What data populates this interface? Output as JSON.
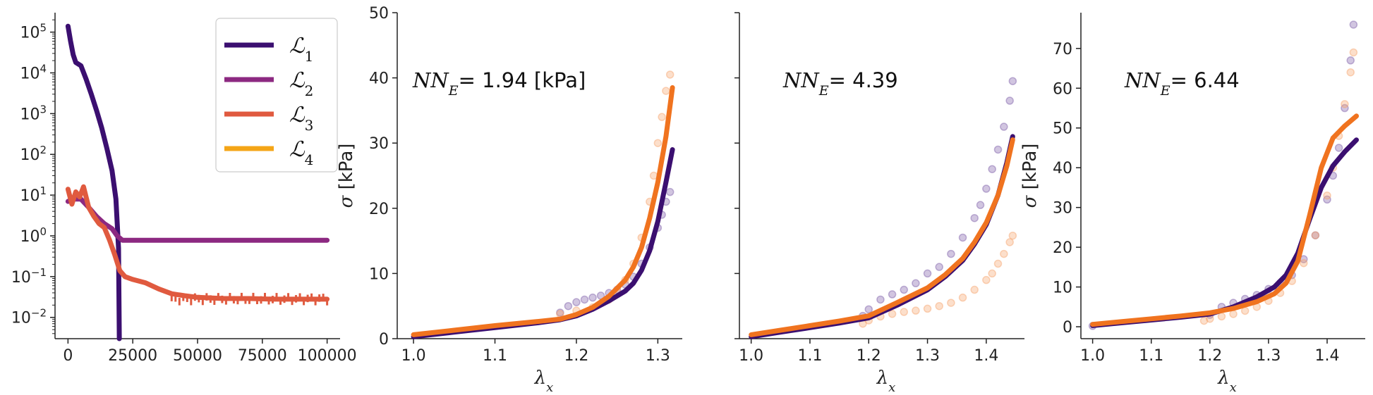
{
  "chart_data": [
    {
      "type": "line",
      "yscale": "log",
      "xlim": [
        -5000,
        105000
      ],
      "ylim": [
        0.003,
        300000
      ],
      "xticks": [
        0,
        25000,
        50000,
        75000,
        100000
      ],
      "xtick_labels": [
        "0",
        "25000",
        "50000",
        "75000",
        "100000"
      ],
      "ytick_labels": [
        "10^-2",
        "10^-1",
        "10^0",
        "10^1",
        "10^2",
        "10^3",
        "10^4",
        "10^5"
      ],
      "yticks": [
        0.01,
        0.1,
        1,
        10,
        100,
        1000,
        10000,
        100000
      ],
      "legend": {
        "placement": "top-right",
        "entries": [
          "L1",
          "L2",
          "L3",
          "L4"
        ]
      },
      "series": [
        {
          "name": "L1",
          "color": "#3b0f70",
          "x": [
            0,
            1000,
            2000,
            3000,
            5000,
            7000,
            9000,
            11000,
            13000,
            15000,
            17000,
            18500,
            19500,
            19800
          ],
          "y": [
            140000,
            60000,
            28000,
            18000,
            15000,
            7000,
            3000,
            1200,
            450,
            140,
            40,
            8,
            0.5,
            0.003
          ]
        },
        {
          "name": "L2",
          "color": "#8c2981",
          "x": [
            0,
            2000,
            5000,
            8000,
            11000,
            14000,
            17000,
            19000,
            21000,
            25000,
            50000,
            75000,
            100000
          ],
          "y": [
            7,
            8,
            8,
            5,
            3,
            2,
            1.5,
            1.0,
            0.78,
            0.78,
            0.78,
            0.78,
            0.78
          ]
        },
        {
          "name": "L3",
          "color": "#e05a3f",
          "x": [
            0,
            1500,
            3000,
            4500,
            6000,
            8000,
            10000,
            12000,
            14000,
            16000,
            18000,
            20000,
            22000,
            25000,
            30000,
            35000,
            40000,
            45000,
            50000,
            60000,
            70000,
            80000,
            90000,
            100000
          ],
          "y": [
            14,
            6,
            12,
            9,
            16,
            5,
            3,
            2,
            1.6,
            0.8,
            0.35,
            0.14,
            0.1,
            0.085,
            0.07,
            0.05,
            0.038,
            0.034,
            0.031,
            0.029,
            0.029,
            0.028,
            0.028,
            0.028
          ]
        },
        {
          "name": "L4",
          "color": "#f4a517",
          "x": [],
          "y": []
        }
      ]
    },
    {
      "type": "line",
      "xlabel": "λx",
      "ylabel": "σ [kPa]",
      "xlim": [
        0.98,
        1.33
      ],
      "ylim": [
        0,
        50
      ],
      "xticks": [
        1.0,
        1.1,
        1.2,
        1.3
      ],
      "yticks": [
        0,
        10,
        20,
        30,
        40,
        50
      ],
      "annotation": {
        "prefix": "NN",
        "subscript": "E",
        "text": "= 1.94 [kPa]"
      },
      "series": [
        {
          "name": "data-purple",
          "kind": "scatter",
          "color": "#7a5aa6",
          "x": [
            1.18,
            1.19,
            1.2,
            1.21,
            1.22,
            1.23,
            1.24,
            1.25,
            1.26,
            1.27,
            1.28,
            1.29,
            1.3,
            1.305,
            1.31,
            1.315
          ],
          "y": [
            4.0,
            5.0,
            5.6,
            6.0,
            6.3,
            6.6,
            7.0,
            7.5,
            8.3,
            9.5,
            11.5,
            14.0,
            17.0,
            19.0,
            21.0,
            22.5
          ]
        },
        {
          "name": "data-orange",
          "kind": "scatter",
          "color": "#f7a26b",
          "x": [
            1.18,
            1.2,
            1.22,
            1.24,
            1.25,
            1.26,
            1.27,
            1.28,
            1.29,
            1.295,
            1.3,
            1.305,
            1.31,
            1.315
          ],
          "y": [
            3.8,
            4.3,
            4.8,
            6.0,
            7.2,
            9.0,
            11.5,
            15.5,
            21.0,
            25.0,
            30.0,
            34.0,
            38.0,
            40.5
          ]
        },
        {
          "name": "model-purple",
          "kind": "line",
          "color": "#3b0f70",
          "x": [
            1.0,
            1.05,
            1.1,
            1.15,
            1.18,
            1.2,
            1.22,
            1.24,
            1.26,
            1.27,
            1.28,
            1.29,
            1.3,
            1.31,
            1.318
          ],
          "y": [
            0.3,
            1.0,
            1.7,
            2.4,
            2.9,
            3.5,
            4.5,
            5.8,
            7.3,
            8.5,
            10.5,
            13.5,
            18.0,
            24.0,
            29.0
          ]
        },
        {
          "name": "model-orange",
          "kind": "line",
          "color": "#f0731f",
          "x": [
            1.0,
            1.05,
            1.1,
            1.15,
            1.18,
            1.2,
            1.22,
            1.24,
            1.26,
            1.27,
            1.28,
            1.29,
            1.3,
            1.31,
            1.318
          ],
          "y": [
            0.6,
            1.3,
            2.0,
            2.6,
            3.0,
            3.7,
            4.8,
            6.5,
            9.0,
            11.0,
            14.0,
            18.5,
            24.0,
            31.0,
            38.5
          ]
        }
      ]
    },
    {
      "type": "line",
      "xlabel": "λx",
      "xlim": [
        0.98,
        1.465
      ],
      "ylim": [
        0,
        50
      ],
      "xticks": [
        1.0,
        1.1,
        1.2,
        1.3,
        1.4
      ],
      "yticks": [
        0,
        10,
        20,
        30,
        40,
        50
      ],
      "annotation": {
        "prefix": "NN",
        "subscript": "E",
        "text": "= 4.39"
      },
      "series": [
        {
          "name": "data-purple",
          "kind": "scatter",
          "color": "#7a5aa6",
          "x": [
            1.19,
            1.2,
            1.22,
            1.24,
            1.26,
            1.28,
            1.3,
            1.32,
            1.34,
            1.36,
            1.38,
            1.39,
            1.4,
            1.41,
            1.42,
            1.43,
            1.44,
            1.445
          ],
          "y": [
            3.5,
            4.5,
            6.0,
            6.8,
            7.5,
            8.5,
            10.0,
            11.0,
            13.0,
            15.5,
            18.5,
            20.5,
            23.0,
            26.0,
            29.0,
            32.5,
            36.5,
            39.5
          ]
        },
        {
          "name": "data-orange",
          "kind": "scatter",
          "color": "#f7a26b",
          "x": [
            1.19,
            1.2,
            1.22,
            1.24,
            1.26,
            1.28,
            1.3,
            1.32,
            1.34,
            1.36,
            1.38,
            1.4,
            1.41,
            1.42,
            1.43,
            1.44,
            1.445
          ],
          "y": [
            2.3,
            2.8,
            3.4,
            3.8,
            4.1,
            4.3,
            4.6,
            5.0,
            5.5,
            6.3,
            7.5,
            9.0,
            10.0,
            11.5,
            13.0,
            14.8,
            15.8
          ]
        },
        {
          "name": "model-purple",
          "kind": "line",
          "color": "#3b0f70",
          "x": [
            1.0,
            1.05,
            1.1,
            1.15,
            1.2,
            1.25,
            1.3,
            1.33,
            1.36,
            1.38,
            1.4,
            1.42,
            1.435,
            1.445
          ],
          "y": [
            0.3,
            1.0,
            1.7,
            2.4,
            3.2,
            5.2,
            7.5,
            9.5,
            12.0,
            14.5,
            17.5,
            22.0,
            27.0,
            31.0
          ]
        },
        {
          "name": "model-orange",
          "kind": "line",
          "color": "#f0731f",
          "x": [
            1.0,
            1.05,
            1.1,
            1.15,
            1.2,
            1.25,
            1.3,
            1.33,
            1.36,
            1.38,
            1.4,
            1.42,
            1.435,
            1.445
          ],
          "y": [
            0.6,
            1.3,
            2.0,
            2.7,
            3.5,
            5.6,
            7.8,
            9.8,
            12.3,
            14.8,
            17.8,
            22.0,
            26.5,
            30.5
          ]
        }
      ]
    },
    {
      "type": "line",
      "xlabel": "λx",
      "ylabel": "σ [kPa]",
      "xlim": [
        0.98,
        1.465
      ],
      "ylim": [
        -3,
        79
      ],
      "xticks": [
        1.0,
        1.1,
        1.2,
        1.3,
        1.4
      ],
      "yticks": [
        0,
        10,
        20,
        30,
        40,
        50,
        60,
        70
      ],
      "annotation": {
        "prefix": "NN",
        "subscript": "E",
        "text": "= 6.44"
      },
      "series": [
        {
          "name": "data-purple",
          "kind": "scatter",
          "color": "#7a5aa6",
          "x": [
            1.0,
            1.2,
            1.22,
            1.24,
            1.26,
            1.28,
            1.3,
            1.32,
            1.34,
            1.36,
            1.38,
            1.4,
            1.41,
            1.42,
            1.43,
            1.44,
            1.445
          ],
          "y": [
            0.2,
            3.0,
            5.0,
            6.0,
            7.0,
            8.0,
            9.5,
            11.0,
            13.0,
            17.0,
            23.0,
            32.0,
            38.0,
            45.0,
            55.0,
            67.0,
            76.0
          ]
        },
        {
          "name": "data-orange",
          "kind": "scatter",
          "color": "#f7a26b",
          "x": [
            1.19,
            1.2,
            1.22,
            1.24,
            1.26,
            1.28,
            1.3,
            1.32,
            1.34,
            1.36,
            1.38,
            1.4,
            1.41,
            1.42,
            1.43,
            1.44,
            1.445
          ],
          "y": [
            1.5,
            2.0,
            2.6,
            3.2,
            4.0,
            5.0,
            6.5,
            8.5,
            11.5,
            16.0,
            23.0,
            33.0,
            40.0,
            48.0,
            56.0,
            64.0,
            69.0
          ]
        },
        {
          "name": "model-purple",
          "kind": "line",
          "color": "#3b0f70",
          "x": [
            1.0,
            1.05,
            1.1,
            1.15,
            1.2,
            1.24,
            1.28,
            1.31,
            1.33,
            1.35,
            1.37,
            1.39,
            1.41,
            1.43,
            1.45
          ],
          "y": [
            0.3,
            1.0,
            1.7,
            2.4,
            3.2,
            5.0,
            7.5,
            10.0,
            13.0,
            18.5,
            27.0,
            35.0,
            40.5,
            44.0,
            47.0
          ]
        },
        {
          "name": "model-orange",
          "kind": "line",
          "color": "#f0731f",
          "x": [
            1.0,
            1.05,
            1.1,
            1.15,
            1.2,
            1.24,
            1.28,
            1.31,
            1.33,
            1.35,
            1.37,
            1.39,
            1.41,
            1.43,
            1.45
          ],
          "y": [
            0.6,
            1.3,
            2.0,
            2.7,
            3.5,
            4.6,
            6.3,
            8.3,
            11.0,
            16.5,
            28.0,
            40.0,
            47.5,
            50.5,
            53.0
          ]
        }
      ]
    }
  ]
}
